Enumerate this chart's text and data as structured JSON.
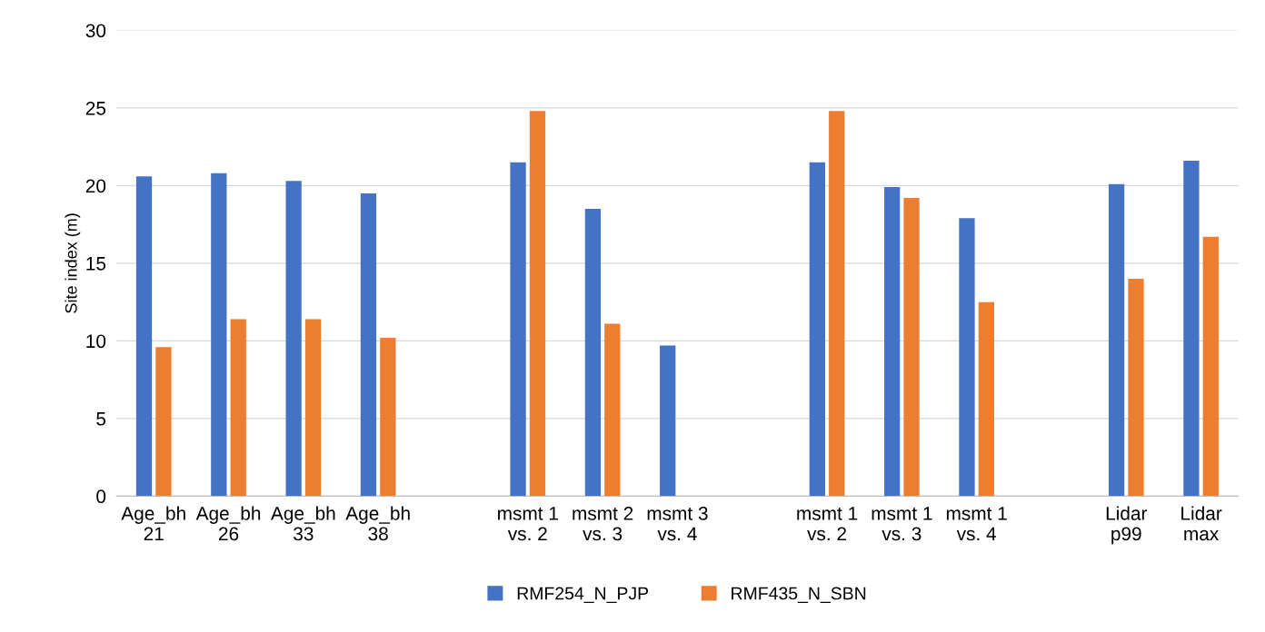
{
  "chart_data": {
    "type": "bar",
    "ylabel": "Site index (m)",
    "categories": [
      "Age_bh\n21",
      "Age_bh\n26",
      "Age_bh\n33",
      "Age_bh\n38",
      null,
      "msmt 1\nvs. 2",
      "msmt 2\nvs. 3",
      "msmt 3\nvs. 4",
      null,
      "msmt 1\nvs. 2",
      "msmt 1\nvs. 3",
      "msmt 1\nvs. 4",
      null,
      "Lidar\np99",
      "Lidar\nmax"
    ],
    "series": [
      {
        "name": "RMF254_N_PJP",
        "color": "#4472c4",
        "values": [
          20.6,
          20.8,
          20.3,
          19.5,
          null,
          21.5,
          18.5,
          9.7,
          null,
          21.5,
          19.9,
          17.9,
          null,
          20.1,
          21.6
        ]
      },
      {
        "name": "RMF435_N_SBN",
        "color": "#ed7d31",
        "values": [
          9.6,
          11.4,
          11.4,
          10.2,
          null,
          24.8,
          11.1,
          null,
          null,
          24.8,
          19.2,
          12.5,
          null,
          14.0,
          16.7
        ]
      }
    ],
    "ylim": [
      0,
      30
    ],
    "yticks": [
      0,
      5,
      10,
      15,
      20,
      25,
      30
    ],
    "grid": "y",
    "legend": "bottom"
  }
}
